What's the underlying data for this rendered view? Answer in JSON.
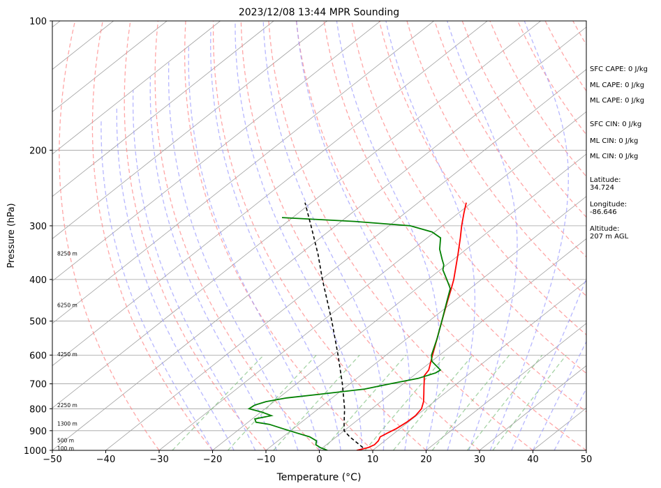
{
  "chart_data": {
    "type": "line",
    "title": "2023/12/08 13:44 MPR Sounding",
    "xlabel": "Temperature (°C)",
    "ylabel": "Pressure (hPa)",
    "xlim": [
      -50,
      50
    ],
    "ylim": [
      1000,
      100
    ],
    "y_scale": "log",
    "skew": "skew-T",
    "x_ticks": [
      "−50",
      "−40",
      "−30",
      "−20",
      "−10",
      "0",
      "10",
      "20",
      "30",
      "40",
      "50"
    ],
    "y_ticks": [
      100,
      200,
      300,
      400,
      500,
      600,
      700,
      800,
      900,
      1000
    ],
    "grid": true,
    "series": [
      {
        "role": "temperature",
        "color": "#ff0000",
        "points": [
          [
            1000,
            7.0
          ],
          [
            985,
            8.5
          ],
          [
            970,
            9.0
          ],
          [
            950,
            8.8
          ],
          [
            930,
            8.2
          ],
          [
            910,
            8.7
          ],
          [
            890,
            9.3
          ],
          [
            860,
            9.7
          ],
          [
            830,
            9.8
          ],
          [
            800,
            9.3
          ],
          [
            770,
            8.0
          ],
          [
            740,
            6.3
          ],
          [
            710,
            4.5
          ],
          [
            690,
            3.3
          ],
          [
            670,
            2.0
          ],
          [
            650,
            1.5
          ],
          [
            600,
            -1.3
          ],
          [
            550,
            -4.3
          ],
          [
            500,
            -7.6
          ],
          [
            450,
            -11.2
          ],
          [
            420,
            -13.5
          ],
          [
            400,
            -15.2
          ],
          [
            350,
            -20.3
          ],
          [
            320,
            -23.8
          ],
          [
            300,
            -26.4
          ],
          [
            280,
            -29.0
          ],
          [
            265,
            -31.0
          ]
        ]
      },
      {
        "role": "dewpoint",
        "color": "#008000",
        "points": [
          [
            1000,
            1.5
          ],
          [
            985,
            -0.5
          ],
          [
            970,
            -2.0
          ],
          [
            950,
            -2.8
          ],
          [
            930,
            -5.0
          ],
          [
            910,
            -8.5
          ],
          [
            890,
            -12.0
          ],
          [
            870,
            -15.5
          ],
          [
            860,
            -18.5
          ],
          [
            845,
            -19.5
          ],
          [
            830,
            -17.2
          ],
          [
            815,
            -19.7
          ],
          [
            800,
            -23.0
          ],
          [
            785,
            -22.8
          ],
          [
            770,
            -21.5
          ],
          [
            755,
            -18.5
          ],
          [
            740,
            -13.0
          ],
          [
            720,
            -6.0
          ],
          [
            700,
            -2.5
          ],
          [
            680,
            1.5
          ],
          [
            660,
            3.5
          ],
          [
            650,
            3.7
          ],
          [
            620,
            0.0
          ],
          [
            600,
            -1.5
          ],
          [
            550,
            -4.3
          ],
          [
            500,
            -7.6
          ],
          [
            450,
            -11.3
          ],
          [
            420,
            -13.7
          ],
          [
            400,
            -16.5
          ],
          [
            380,
            -19.5
          ],
          [
            370,
            -20.5
          ],
          [
            360,
            -22.0
          ],
          [
            340,
            -25.0
          ],
          [
            320,
            -27.5
          ],
          [
            310,
            -30.5
          ],
          [
            300,
            -36.0
          ],
          [
            293,
            -47.5
          ],
          [
            287,
            -62.0
          ]
        ]
      },
      {
        "role": "parcel",
        "color": "#000000",
        "points": [
          [
            985,
            7.5
          ],
          [
            930,
            2.5
          ],
          [
            900,
            0.0
          ],
          [
            860,
            -2.0
          ],
          [
            800,
            -5.1
          ],
          [
            700,
            -11.4
          ],
          [
            600,
            -19.0
          ],
          [
            500,
            -28.2
          ],
          [
            400,
            -39.8
          ],
          [
            350,
            -46.5
          ],
          [
            300,
            -54.6
          ],
          [
            265,
            -61.2
          ]
        ]
      }
    ],
    "height_labels": [
      {
        "text": "8250 m",
        "p": 348
      },
      {
        "text": "6250 m",
        "p": 459
      },
      {
        "text": "4250 m",
        "p": 597
      },
      {
        "text": "2250 m",
        "p": 784
      },
      {
        "text": "1300 m",
        "p": 866
      },
      {
        "text": "500 m",
        "p": 947
      },
      {
        "text": "100 m",
        "p": 988
      }
    ],
    "annotations": [
      {
        "key": "sfc_cape",
        "text": "SFC CAPE: 0 J/kg"
      },
      {
        "key": "ml_cape_1",
        "text": "ML CAPE: 0 J/kg"
      },
      {
        "key": "ml_cape_2",
        "text": "ML CAPE: 0 J/kg"
      },
      {
        "key": "sfc_cin",
        "text": "SFC CIN: 0 J/kg"
      },
      {
        "key": "ml_cin_1",
        "text": "ML CIN: 0 J/kg"
      },
      {
        "key": "ml_cin_2",
        "text": "ML CIN: 0 J/kg"
      },
      {
        "key": "latitude",
        "text": "Latitude:\n34.724"
      },
      {
        "key": "longitude",
        "text": "Longitude:\n-86.646"
      },
      {
        "key": "altitude",
        "text": "Altitude:\n207 m AGL"
      }
    ],
    "reference_lines": {
      "isotherm_color": "#a0a0a0",
      "dry_adiabat_color": "#ff8080",
      "moist_adiabat_color": "#9999ff",
      "mixing_ratio_color": "#80c080"
    }
  }
}
